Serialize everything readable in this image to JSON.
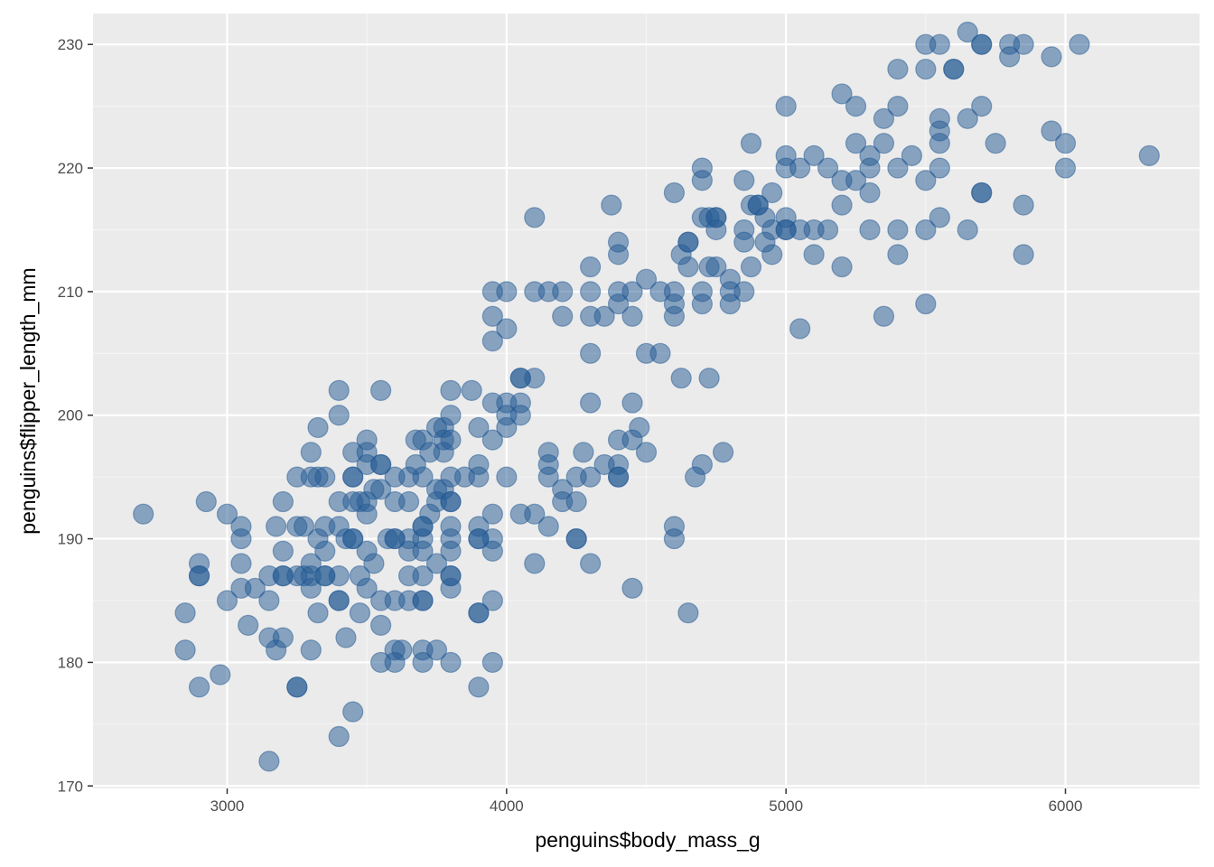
{
  "colors": {
    "panel": "#EBEBEB",
    "grid_major": "#FFFFFF",
    "grid_minor": "#F5F5F5",
    "point": "#235A94",
    "tick": "#333333"
  },
  "chart_data": {
    "type": "scatter",
    "xlabel": "penguins$body_mass_g",
    "ylabel": "penguins$flipper_length_mm",
    "xlim": [
      2520,
      6480
    ],
    "ylim": [
      169.8,
      232.5
    ],
    "x_ticks": [
      3000,
      4000,
      5000,
      6000
    ],
    "x_tick_labels": [
      "3000",
      "4000",
      "5000",
      "6000"
    ],
    "y_ticks": [
      170,
      180,
      190,
      200,
      210,
      220,
      230
    ],
    "y_tick_labels": [
      "170",
      "180",
      "190",
      "200",
      "210",
      "220",
      "230"
    ],
    "grid": true,
    "legend": "none",
    "point_alpha": 0.5,
    "points": [
      [
        2700,
        192
      ],
      [
        2850,
        184
      ],
      [
        2850,
        181
      ],
      [
        2900,
        187
      ],
      [
        2900,
        187
      ],
      [
        2900,
        188
      ],
      [
        2900,
        178
      ],
      [
        2925,
        193
      ],
      [
        2975,
        179
      ],
      [
        3000,
        185
      ],
      [
        3000,
        192
      ],
      [
        3050,
        191
      ],
      [
        3050,
        190
      ],
      [
        3050,
        188
      ],
      [
        3050,
        186
      ],
      [
        3075,
        183
      ],
      [
        3100,
        186
      ],
      [
        3150,
        172
      ],
      [
        3150,
        185
      ],
      [
        3150,
        187
      ],
      [
        3150,
        182
      ],
      [
        3175,
        191
      ],
      [
        3175,
        181
      ],
      [
        3200,
        193
      ],
      [
        3200,
        189
      ],
      [
        3200,
        187
      ],
      [
        3200,
        187
      ],
      [
        3200,
        182
      ],
      [
        3250,
        195
      ],
      [
        3250,
        187
      ],
      [
        3250,
        191
      ],
      [
        3250,
        178
      ],
      [
        3250,
        178
      ],
      [
        3275,
        187
      ],
      [
        3275,
        191
      ],
      [
        3300,
        197
      ],
      [
        3300,
        195
      ],
      [
        3300,
        188
      ],
      [
        3300,
        187
      ],
      [
        3300,
        186
      ],
      [
        3300,
        181
      ],
      [
        3325,
        199
      ],
      [
        3325,
        195
      ],
      [
        3325,
        190
      ],
      [
        3325,
        184
      ],
      [
        3350,
        195
      ],
      [
        3350,
        191
      ],
      [
        3350,
        189
      ],
      [
        3350,
        187
      ],
      [
        3350,
        187
      ],
      [
        3400,
        202
      ],
      [
        3400,
        200
      ],
      [
        3400,
        193
      ],
      [
        3400,
        191
      ],
      [
        3400,
        187
      ],
      [
        3400,
        185
      ],
      [
        3400,
        185
      ],
      [
        3400,
        174
      ],
      [
        3425,
        190
      ],
      [
        3425,
        182
      ],
      [
        3450,
        197
      ],
      [
        3450,
        195
      ],
      [
        3450,
        195
      ],
      [
        3450,
        193
      ],
      [
        3450,
        190
      ],
      [
        3450,
        190
      ],
      [
        3450,
        176
      ],
      [
        3475,
        193
      ],
      [
        3475,
        187
      ],
      [
        3475,
        184
      ],
      [
        3500,
        198
      ],
      [
        3500,
        197
      ],
      [
        3500,
        196
      ],
      [
        3500,
        193
      ],
      [
        3500,
        192
      ],
      [
        3500,
        189
      ],
      [
        3500,
        186
      ],
      [
        3525,
        194
      ],
      [
        3525,
        188
      ],
      [
        3550,
        202
      ],
      [
        3550,
        196
      ],
      [
        3550,
        196
      ],
      [
        3550,
        194
      ],
      [
        3550,
        185
      ],
      [
        3550,
        183
      ],
      [
        3550,
        180
      ],
      [
        3575,
        190
      ],
      [
        3600,
        195
      ],
      [
        3600,
        193
      ],
      [
        3600,
        190
      ],
      [
        3600,
        190
      ],
      [
        3600,
        185
      ],
      [
        3600,
        181
      ],
      [
        3600,
        180
      ],
      [
        3625,
        181
      ],
      [
        3650,
        195
      ],
      [
        3650,
        193
      ],
      [
        3650,
        190
      ],
      [
        3650,
        189
      ],
      [
        3650,
        187
      ],
      [
        3650,
        185
      ],
      [
        3675,
        196
      ],
      [
        3675,
        198
      ],
      [
        3700,
        198
      ],
      [
        3700,
        195
      ],
      [
        3700,
        191
      ],
      [
        3700,
        191
      ],
      [
        3700,
        190
      ],
      [
        3700,
        189
      ],
      [
        3700,
        187
      ],
      [
        3700,
        185
      ],
      [
        3700,
        185
      ],
      [
        3700,
        181
      ],
      [
        3700,
        180
      ],
      [
        3725,
        197
      ],
      [
        3725,
        192
      ],
      [
        3750,
        199
      ],
      [
        3750,
        194
      ],
      [
        3750,
        193
      ],
      [
        3750,
        188
      ],
      [
        3750,
        181
      ],
      [
        3775,
        198
      ],
      [
        3775,
        199
      ],
      [
        3775,
        194
      ],
      [
        3775,
        197
      ],
      [
        3800,
        202
      ],
      [
        3800,
        200
      ],
      [
        3800,
        198
      ],
      [
        3800,
        195
      ],
      [
        3800,
        193
      ],
      [
        3800,
        193
      ],
      [
        3800,
        191
      ],
      [
        3800,
        190
      ],
      [
        3800,
        189
      ],
      [
        3800,
        187
      ],
      [
        3800,
        187
      ],
      [
        3800,
        186
      ],
      [
        3800,
        180
      ],
      [
        3850,
        195
      ],
      [
        3875,
        202
      ],
      [
        3900,
        199
      ],
      [
        3900,
        196
      ],
      [
        3900,
        195
      ],
      [
        3900,
        191
      ],
      [
        3900,
        190
      ],
      [
        3900,
        190
      ],
      [
        3900,
        184
      ],
      [
        3900,
        184
      ],
      [
        3900,
        178
      ],
      [
        3950,
        210
      ],
      [
        3950,
        208
      ],
      [
        3950,
        206
      ],
      [
        3950,
        201
      ],
      [
        3950,
        198
      ],
      [
        3950,
        192
      ],
      [
        3950,
        190
      ],
      [
        3950,
        189
      ],
      [
        3950,
        185
      ],
      [
        3950,
        180
      ],
      [
        4000,
        210
      ],
      [
        4000,
        207
      ],
      [
        4000,
        200
      ],
      [
        4000,
        201
      ],
      [
        4000,
        199
      ],
      [
        4000,
        195
      ],
      [
        4050,
        203
      ],
      [
        4050,
        203
      ],
      [
        4050,
        201
      ],
      [
        4050,
        200
      ],
      [
        4050,
        192
      ],
      [
        4100,
        216
      ],
      [
        4100,
        210
      ],
      [
        4100,
        203
      ],
      [
        4100,
        192
      ],
      [
        4100,
        188
      ],
      [
        4150,
        210
      ],
      [
        4150,
        197
      ],
      [
        4150,
        196
      ],
      [
        4150,
        195
      ],
      [
        4150,
        191
      ],
      [
        4200,
        210
      ],
      [
        4200,
        208
      ],
      [
        4200,
        194
      ],
      [
        4200,
        193
      ],
      [
        4250,
        195
      ],
      [
        4250,
        193
      ],
      [
        4250,
        190
      ],
      [
        4250,
        190
      ],
      [
        4275,
        197
      ],
      [
        4300,
        212
      ],
      [
        4300,
        210
      ],
      [
        4300,
        208
      ],
      [
        4300,
        205
      ],
      [
        4300,
        201
      ],
      [
        4300,
        195
      ],
      [
        4300,
        188
      ],
      [
        4350,
        208
      ],
      [
        4350,
        196
      ],
      [
        4375,
        217
      ],
      [
        4400,
        214
      ],
      [
        4400,
        213
      ],
      [
        4400,
        210
      ],
      [
        4400,
        209
      ],
      [
        4400,
        198
      ],
      [
        4400,
        196
      ],
      [
        4400,
        195
      ],
      [
        4400,
        195
      ],
      [
        4450,
        210
      ],
      [
        4450,
        208
      ],
      [
        4450,
        201
      ],
      [
        4450,
        198
      ],
      [
        4450,
        186
      ],
      [
        4475,
        199
      ],
      [
        4500,
        211
      ],
      [
        4500,
        205
      ],
      [
        4500,
        197
      ],
      [
        4550,
        210
      ],
      [
        4550,
        205
      ],
      [
        4600,
        218
      ],
      [
        4600,
        210
      ],
      [
        4600,
        208
      ],
      [
        4600,
        209
      ],
      [
        4600,
        191
      ],
      [
        4600,
        190
      ],
      [
        4625,
        213
      ],
      [
        4625,
        203
      ],
      [
        4650,
        214
      ],
      [
        4650,
        214
      ],
      [
        4650,
        212
      ],
      [
        4650,
        184
      ],
      [
        4675,
        195
      ],
      [
        4700,
        220
      ],
      [
        4700,
        219
      ],
      [
        4700,
        216
      ],
      [
        4700,
        210
      ],
      [
        4700,
        209
      ],
      [
        4700,
        196
      ],
      [
        4725,
        216
      ],
      [
        4725,
        212
      ],
      [
        4725,
        203
      ],
      [
        4750,
        216
      ],
      [
        4750,
        216
      ],
      [
        4750,
        215
      ],
      [
        4750,
        212
      ],
      [
        4775,
        197
      ],
      [
        4800,
        211
      ],
      [
        4800,
        210
      ],
      [
        4800,
        209
      ],
      [
        4850,
        219
      ],
      [
        4850,
        215
      ],
      [
        4850,
        214
      ],
      [
        4850,
        210
      ],
      [
        4875,
        222
      ],
      [
        4875,
        217
      ],
      [
        4875,
        212
      ],
      [
        4900,
        217
      ],
      [
        4900,
        217
      ],
      [
        4925,
        216
      ],
      [
        4925,
        214
      ],
      [
        4950,
        218
      ],
      [
        4950,
        215
      ],
      [
        4950,
        213
      ],
      [
        5000,
        225
      ],
      [
        5000,
        221
      ],
      [
        5000,
        220
      ],
      [
        5000,
        216
      ],
      [
        5000,
        215
      ],
      [
        5000,
        215
      ],
      [
        5050,
        220
      ],
      [
        5050,
        215
      ],
      [
        5050,
        207
      ],
      [
        5100,
        221
      ],
      [
        5100,
        215
      ],
      [
        5100,
        213
      ],
      [
        5150,
        220
      ],
      [
        5150,
        215
      ],
      [
        5200,
        226
      ],
      [
        5200,
        219
      ],
      [
        5200,
        217
      ],
      [
        5200,
        212
      ],
      [
        5250,
        225
      ],
      [
        5250,
        222
      ],
      [
        5250,
        219
      ],
      [
        5300,
        221
      ],
      [
        5300,
        220
      ],
      [
        5300,
        218
      ],
      [
        5300,
        215
      ],
      [
        5350,
        224
      ],
      [
        5350,
        222
      ],
      [
        5350,
        208
      ],
      [
        5400,
        228
      ],
      [
        5400,
        225
      ],
      [
        5400,
        220
      ],
      [
        5400,
        215
      ],
      [
        5400,
        213
      ],
      [
        5450,
        221
      ],
      [
        5500,
        230
      ],
      [
        5500,
        228
      ],
      [
        5500,
        219
      ],
      [
        5500,
        215
      ],
      [
        5500,
        209
      ],
      [
        5550,
        230
      ],
      [
        5550,
        224
      ],
      [
        5550,
        223
      ],
      [
        5550,
        222
      ],
      [
        5550,
        220
      ],
      [
        5550,
        216
      ],
      [
        5600,
        228
      ],
      [
        5600,
        228
      ],
      [
        5650,
        231
      ],
      [
        5650,
        224
      ],
      [
        5650,
        215
      ],
      [
        5700,
        230
      ],
      [
        5700,
        230
      ],
      [
        5700,
        225
      ],
      [
        5700,
        218
      ],
      [
        5700,
        218
      ],
      [
        5750,
        222
      ],
      [
        5800,
        230
      ],
      [
        5800,
        229
      ],
      [
        5850,
        230
      ],
      [
        5850,
        217
      ],
      [
        5850,
        213
      ],
      [
        5950,
        229
      ],
      [
        5950,
        223
      ],
      [
        6000,
        222
      ],
      [
        6000,
        220
      ],
      [
        6050,
        230
      ],
      [
        6300,
        221
      ]
    ]
  }
}
